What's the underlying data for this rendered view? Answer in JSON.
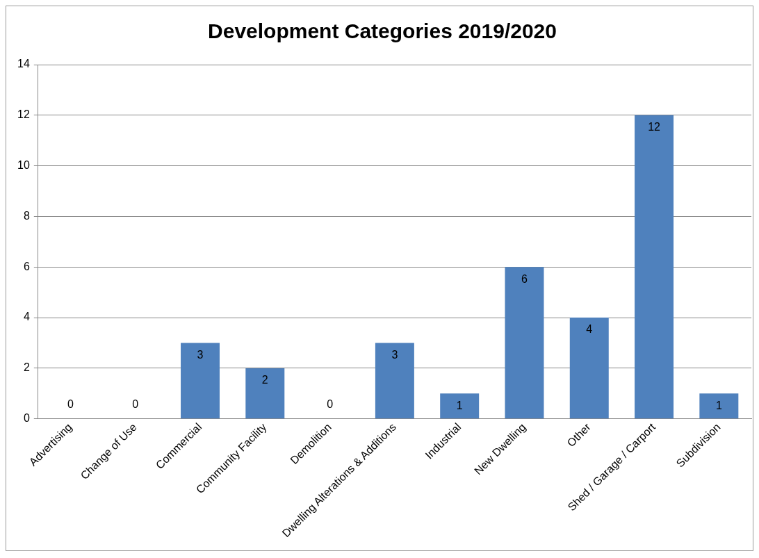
{
  "chart_data": {
    "type": "bar",
    "title": "Development Categories 2019/2020",
    "categories": [
      "Advertising",
      "Change of Use",
      "Commercial",
      "Community Facility",
      "Demolition",
      "Dwelling Alterations & Additions",
      "Industrial",
      "New Dwelling",
      "Other",
      "Shed / Garage / Carport",
      "Subdivision"
    ],
    "values": [
      0,
      0,
      3,
      2,
      0,
      3,
      1,
      6,
      4,
      12,
      1
    ],
    "color": "#4f81bd",
    "ylim": [
      0,
      14
    ],
    "yticks": [
      0,
      2,
      4,
      6,
      8,
      10,
      12,
      14
    ],
    "grid": "y",
    "data_labels": true,
    "legend": false
  }
}
